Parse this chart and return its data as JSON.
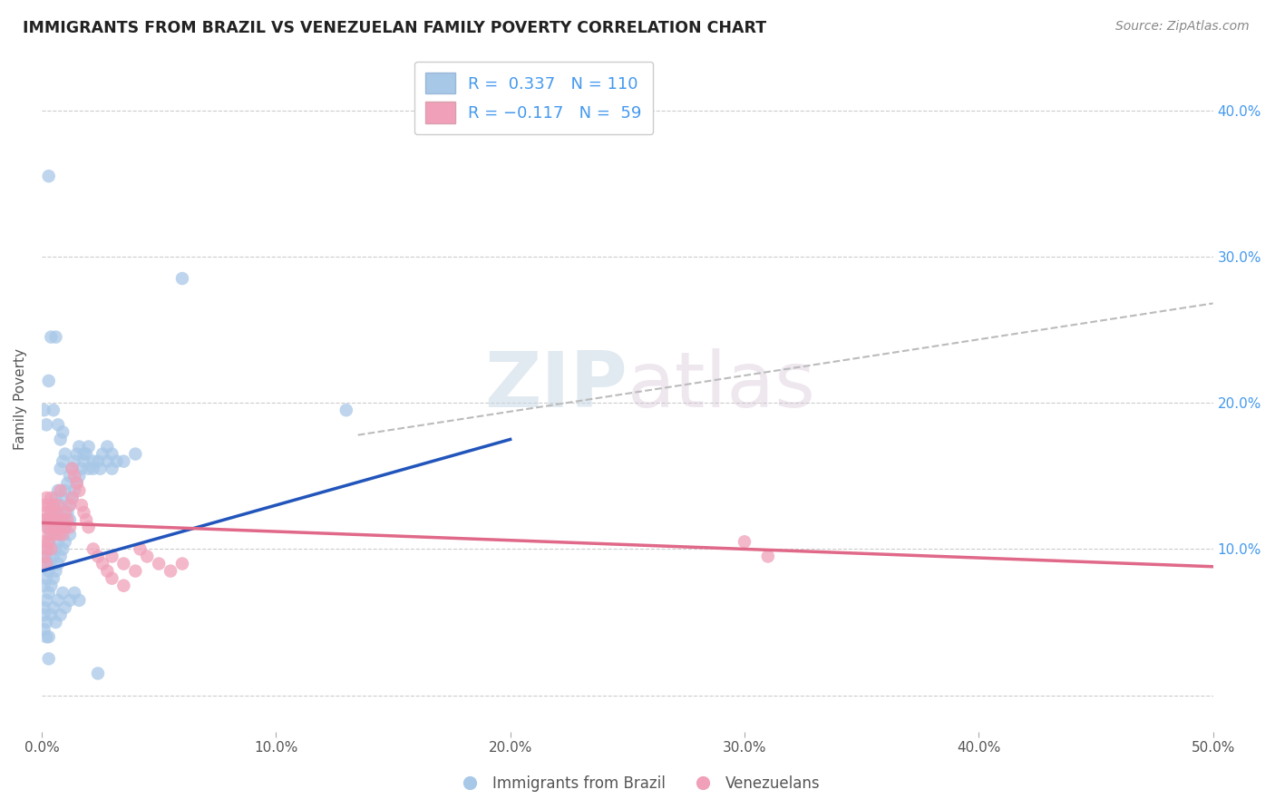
{
  "title": "IMMIGRANTS FROM BRAZIL VS VENEZUELAN FAMILY POVERTY CORRELATION CHART",
  "source": "Source: ZipAtlas.com",
  "ylabel": "Family Poverty",
  "ytick_vals": [
    0,
    0.1,
    0.2,
    0.3,
    0.4
  ],
  "xtick_vals": [
    0,
    0.1,
    0.2,
    0.3,
    0.4,
    0.5
  ],
  "xlim": [
    0,
    0.5
  ],
  "ylim": [
    -0.025,
    0.43
  ],
  "brazil_color": "#a8c8e8",
  "venezuela_color": "#f0a0b8",
  "brazil_line_color": "#2255bb",
  "venezuela_line_color": "#e06888",
  "trend_dashed_color": "#bbbbbb",
  "R_brazil": 0.337,
  "N_brazil": 110,
  "R_venezuela": -0.117,
  "N_venezuela": 59,
  "legend_label_brazil": "Immigrants from Brazil",
  "legend_label_venezuela": "Venezuelans",
  "watermark_zip": "ZIP",
  "watermark_atlas": "atlas",
  "brazil_line_x": [
    0.0,
    0.2
  ],
  "brazil_line_y": [
    0.085,
    0.175
  ],
  "venezuela_line_x": [
    0.0,
    0.5
  ],
  "venezuela_line_y": [
    0.118,
    0.088
  ],
  "dash_line_x": [
    0.135,
    0.5
  ],
  "dash_line_y": [
    0.178,
    0.268
  ],
  "brazil_scatter": [
    [
      0.001,
      0.075
    ],
    [
      0.001,
      0.06
    ],
    [
      0.001,
      0.09
    ],
    [
      0.002,
      0.08
    ],
    [
      0.002,
      0.1
    ],
    [
      0.002,
      0.065
    ],
    [
      0.002,
      0.095
    ],
    [
      0.003,
      0.085
    ],
    [
      0.003,
      0.105
    ],
    [
      0.003,
      0.07
    ],
    [
      0.003,
      0.115
    ],
    [
      0.004,
      0.09
    ],
    [
      0.004,
      0.11
    ],
    [
      0.004,
      0.075
    ],
    [
      0.004,
      0.125
    ],
    [
      0.005,
      0.095
    ],
    [
      0.005,
      0.115
    ],
    [
      0.005,
      0.08
    ],
    [
      0.005,
      0.13
    ],
    [
      0.006,
      0.1
    ],
    [
      0.006,
      0.12
    ],
    [
      0.006,
      0.085
    ],
    [
      0.006,
      0.135
    ],
    [
      0.007,
      0.105
    ],
    [
      0.007,
      0.125
    ],
    [
      0.007,
      0.09
    ],
    [
      0.007,
      0.14
    ],
    [
      0.008,
      0.11
    ],
    [
      0.008,
      0.13
    ],
    [
      0.008,
      0.095
    ],
    [
      0.008,
      0.155
    ],
    [
      0.009,
      0.115
    ],
    [
      0.009,
      0.135
    ],
    [
      0.009,
      0.1
    ],
    [
      0.009,
      0.16
    ],
    [
      0.01,
      0.12
    ],
    [
      0.01,
      0.14
    ],
    [
      0.01,
      0.105
    ],
    [
      0.01,
      0.165
    ],
    [
      0.011,
      0.125
    ],
    [
      0.011,
      0.145
    ],
    [
      0.012,
      0.13
    ],
    [
      0.012,
      0.15
    ],
    [
      0.012,
      0.11
    ],
    [
      0.013,
      0.135
    ],
    [
      0.013,
      0.155
    ],
    [
      0.014,
      0.14
    ],
    [
      0.014,
      0.16
    ],
    [
      0.015,
      0.145
    ],
    [
      0.015,
      0.165
    ],
    [
      0.016,
      0.15
    ],
    [
      0.016,
      0.17
    ],
    [
      0.017,
      0.155
    ],
    [
      0.018,
      0.16
    ],
    [
      0.019,
      0.165
    ],
    [
      0.02,
      0.17
    ],
    [
      0.022,
      0.155
    ],
    [
      0.024,
      0.16
    ],
    [
      0.026,
      0.165
    ],
    [
      0.028,
      0.16
    ],
    [
      0.03,
      0.155
    ],
    [
      0.032,
      0.16
    ],
    [
      0.001,
      0.045
    ],
    [
      0.002,
      0.05
    ],
    [
      0.003,
      0.04
    ],
    [
      0.004,
      0.055
    ],
    [
      0.005,
      0.06
    ],
    [
      0.006,
      0.05
    ],
    [
      0.007,
      0.065
    ],
    [
      0.008,
      0.055
    ],
    [
      0.009,
      0.07
    ],
    [
      0.01,
      0.06
    ],
    [
      0.012,
      0.065
    ],
    [
      0.014,
      0.07
    ],
    [
      0.016,
      0.065
    ],
    [
      0.003,
      0.355
    ],
    [
      0.004,
      0.245
    ],
    [
      0.06,
      0.285
    ],
    [
      0.13,
      0.195
    ],
    [
      0.003,
      0.215
    ],
    [
      0.005,
      0.195
    ],
    [
      0.007,
      0.185
    ],
    [
      0.006,
      0.245
    ],
    [
      0.001,
      0.195
    ],
    [
      0.002,
      0.185
    ],
    [
      0.008,
      0.175
    ],
    [
      0.009,
      0.18
    ],
    [
      0.018,
      0.165
    ],
    [
      0.02,
      0.155
    ],
    [
      0.022,
      0.16
    ],
    [
      0.025,
      0.155
    ],
    [
      0.028,
      0.17
    ],
    [
      0.03,
      0.165
    ],
    [
      0.035,
      0.16
    ],
    [
      0.04,
      0.165
    ],
    [
      0.002,
      0.12
    ],
    [
      0.003,
      0.115
    ],
    [
      0.004,
      0.12
    ],
    [
      0.005,
      0.115
    ],
    [
      0.006,
      0.125
    ],
    [
      0.007,
      0.12
    ],
    [
      0.01,
      0.115
    ],
    [
      0.012,
      0.12
    ],
    [
      0.001,
      0.055
    ],
    [
      0.002,
      0.04
    ],
    [
      0.003,
      0.025
    ],
    [
      0.024,
      0.015
    ]
  ],
  "venezuela_scatter": [
    [
      0.001,
      0.12
    ],
    [
      0.001,
      0.105
    ],
    [
      0.001,
      0.13
    ],
    [
      0.002,
      0.115
    ],
    [
      0.002,
      0.125
    ],
    [
      0.002,
      0.1
    ],
    [
      0.002,
      0.135
    ],
    [
      0.003,
      0.12
    ],
    [
      0.003,
      0.11
    ],
    [
      0.003,
      0.13
    ],
    [
      0.003,
      0.105
    ],
    [
      0.004,
      0.115
    ],
    [
      0.004,
      0.125
    ],
    [
      0.004,
      0.1
    ],
    [
      0.004,
      0.135
    ],
    [
      0.005,
      0.12
    ],
    [
      0.005,
      0.11
    ],
    [
      0.005,
      0.13
    ],
    [
      0.006,
      0.115
    ],
    [
      0.006,
      0.125
    ],
    [
      0.007,
      0.12
    ],
    [
      0.007,
      0.11
    ],
    [
      0.007,
      0.13
    ],
    [
      0.008,
      0.115
    ],
    [
      0.008,
      0.14
    ],
    [
      0.009,
      0.12
    ],
    [
      0.009,
      0.11
    ],
    [
      0.01,
      0.115
    ],
    [
      0.01,
      0.125
    ],
    [
      0.011,
      0.12
    ],
    [
      0.012,
      0.115
    ],
    [
      0.012,
      0.13
    ],
    [
      0.013,
      0.155
    ],
    [
      0.013,
      0.135
    ],
    [
      0.014,
      0.15
    ],
    [
      0.015,
      0.145
    ],
    [
      0.016,
      0.14
    ],
    [
      0.017,
      0.13
    ],
    [
      0.018,
      0.125
    ],
    [
      0.019,
      0.12
    ],
    [
      0.02,
      0.115
    ],
    [
      0.022,
      0.1
    ],
    [
      0.024,
      0.095
    ],
    [
      0.026,
      0.09
    ],
    [
      0.028,
      0.085
    ],
    [
      0.03,
      0.08
    ],
    [
      0.03,
      0.095
    ],
    [
      0.035,
      0.075
    ],
    [
      0.035,
      0.09
    ],
    [
      0.04,
      0.085
    ],
    [
      0.042,
      0.1
    ],
    [
      0.045,
      0.095
    ],
    [
      0.05,
      0.09
    ],
    [
      0.055,
      0.085
    ],
    [
      0.06,
      0.09
    ],
    [
      0.3,
      0.105
    ],
    [
      0.31,
      0.095
    ],
    [
      0.001,
      0.095
    ],
    [
      0.002,
      0.09
    ]
  ]
}
